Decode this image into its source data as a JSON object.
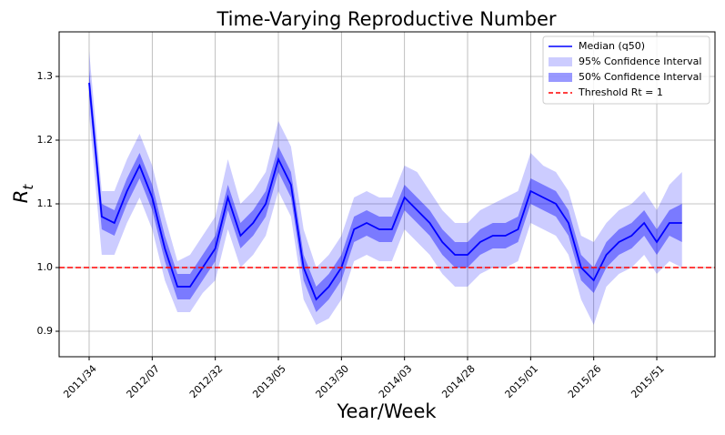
{
  "chart_data": {
    "type": "line",
    "title": "Time-Varying Reproductive Number",
    "xlabel": "Year/Week",
    "ylabel": {
      "text": "R",
      "subscript": "t"
    },
    "categories": [
      "2011/34",
      null,
      null,
      null,
      null,
      "2012/07",
      null,
      null,
      null,
      null,
      "2012/32",
      null,
      null,
      null,
      null,
      "2013/05",
      null,
      null,
      null,
      null,
      "2013/30",
      null,
      null,
      null,
      null,
      "2014/03",
      null,
      null,
      null,
      null,
      "2014/28",
      null,
      null,
      null,
      null,
      "2015/01",
      null,
      null,
      null,
      null,
      "2015/26",
      null,
      null,
      null,
      null,
      "2015/51",
      null,
      null
    ],
    "series": [
      {
        "name": "Median (q50)",
        "color": "#0000ff",
        "values": [
          1.29,
          1.08,
          1.07,
          1.12,
          1.16,
          1.11,
          1.03,
          0.97,
          0.97,
          1.0,
          1.03,
          1.11,
          1.05,
          1.07,
          1.1,
          1.17,
          1.13,
          1.0,
          0.95,
          0.97,
          1.0,
          1.06,
          1.07,
          1.06,
          1.06,
          1.11,
          1.09,
          1.07,
          1.04,
          1.02,
          1.02,
          1.04,
          1.05,
          1.05,
          1.06,
          1.12,
          1.11,
          1.1,
          1.07,
          1.0,
          0.98,
          1.02,
          1.04,
          1.05,
          1.07,
          1.04,
          1.07,
          1.07
        ]
      }
    ],
    "bands": [
      {
        "name": "95% Confidence Interval",
        "color": "#0000ff",
        "alpha": 0.2,
        "upper": [
          1.34,
          1.12,
          1.12,
          1.17,
          1.21,
          1.16,
          1.08,
          1.01,
          1.02,
          1.05,
          1.08,
          1.17,
          1.1,
          1.12,
          1.15,
          1.23,
          1.19,
          1.06,
          1.0,
          1.02,
          1.05,
          1.11,
          1.12,
          1.11,
          1.11,
          1.16,
          1.15,
          1.12,
          1.09,
          1.07,
          1.07,
          1.09,
          1.1,
          1.11,
          1.12,
          1.18,
          1.16,
          1.15,
          1.12,
          1.05,
          1.04,
          1.07,
          1.09,
          1.1,
          1.12,
          1.09,
          1.13,
          1.15
        ],
        "lower": [
          1.24,
          1.02,
          1.02,
          1.07,
          1.11,
          1.06,
          0.98,
          0.93,
          0.93,
          0.96,
          0.98,
          1.06,
          1.0,
          1.02,
          1.05,
          1.12,
          1.08,
          0.95,
          0.91,
          0.92,
          0.95,
          1.01,
          1.02,
          1.01,
          1.01,
          1.06,
          1.04,
          1.02,
          0.99,
          0.97,
          0.97,
          0.99,
          1.0,
          1.0,
          1.01,
          1.07,
          1.06,
          1.05,
          1.02,
          0.95,
          0.91,
          0.97,
          0.99,
          1.0,
          1.02,
          0.99,
          1.01,
          1.0
        ]
      },
      {
        "name": "50% Confidence Interval",
        "color": "#0000ff",
        "alpha": 0.4,
        "upper": [
          1.31,
          1.1,
          1.09,
          1.14,
          1.18,
          1.13,
          1.05,
          0.99,
          0.99,
          1.02,
          1.05,
          1.13,
          1.07,
          1.09,
          1.12,
          1.19,
          1.15,
          1.02,
          0.97,
          0.99,
          1.02,
          1.08,
          1.09,
          1.08,
          1.08,
          1.13,
          1.11,
          1.09,
          1.06,
          1.04,
          1.04,
          1.06,
          1.07,
          1.07,
          1.08,
          1.14,
          1.13,
          1.12,
          1.09,
          1.02,
          1.0,
          1.04,
          1.06,
          1.07,
          1.09,
          1.06,
          1.09,
          1.1
        ],
        "lower": [
          1.27,
          1.06,
          1.05,
          1.1,
          1.14,
          1.09,
          1.01,
          0.95,
          0.95,
          0.98,
          1.01,
          1.09,
          1.03,
          1.05,
          1.08,
          1.15,
          1.11,
          0.98,
          0.93,
          0.95,
          0.98,
          1.04,
          1.05,
          1.04,
          1.04,
          1.09,
          1.07,
          1.05,
          1.02,
          1.0,
          1.0,
          1.02,
          1.03,
          1.03,
          1.04,
          1.1,
          1.09,
          1.08,
          1.05,
          0.98,
          0.96,
          1.0,
          1.02,
          1.03,
          1.05,
          1.02,
          1.05,
          1.04
        ]
      }
    ],
    "threshold": {
      "name": "Threshold Rt = 1",
      "value": 1,
      "color": "#ff0000"
    },
    "ylim": [
      0.86,
      1.37
    ],
    "yticks": [
      0.9,
      {
        "value": 1,
        "label": "1.0"
      },
      1.1,
      1.2,
      1.3
    ],
    "grid": true,
    "legend": "upper right"
  }
}
